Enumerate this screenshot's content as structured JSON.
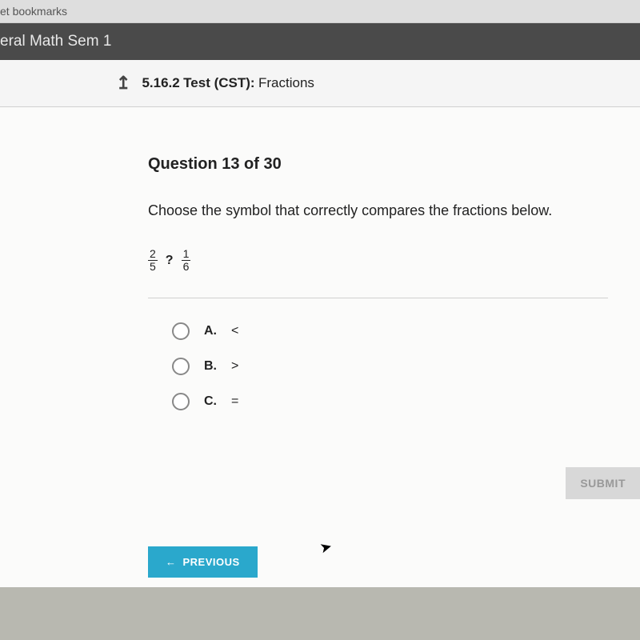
{
  "browser": {
    "bookmarks_label": "et bookmarks"
  },
  "course": {
    "title": "eral Math Sem 1"
  },
  "test_bar": {
    "code": "5.16.2",
    "label": "Test (CST):",
    "topic": "Fractions"
  },
  "question": {
    "header": "Question 13 of 30",
    "prompt": "Choose the symbol that correctly compares the fractions below.",
    "fraction1": {
      "num": "2",
      "den": "5"
    },
    "operator": "?",
    "fraction2": {
      "num": "1",
      "den": "6"
    },
    "options": [
      {
        "letter": "A.",
        "symbol": "<"
      },
      {
        "letter": "B.",
        "symbol": ">"
      },
      {
        "letter": "C.",
        "symbol": "="
      }
    ]
  },
  "buttons": {
    "submit": "SUBMIT",
    "previous": "PREVIOUS"
  },
  "colors": {
    "course_bar_bg": "#4a4a4a",
    "content_bg": "#fbfbfa",
    "previous_bg": "#2aa8cc",
    "submit_bg": "#d8d8d8"
  }
}
